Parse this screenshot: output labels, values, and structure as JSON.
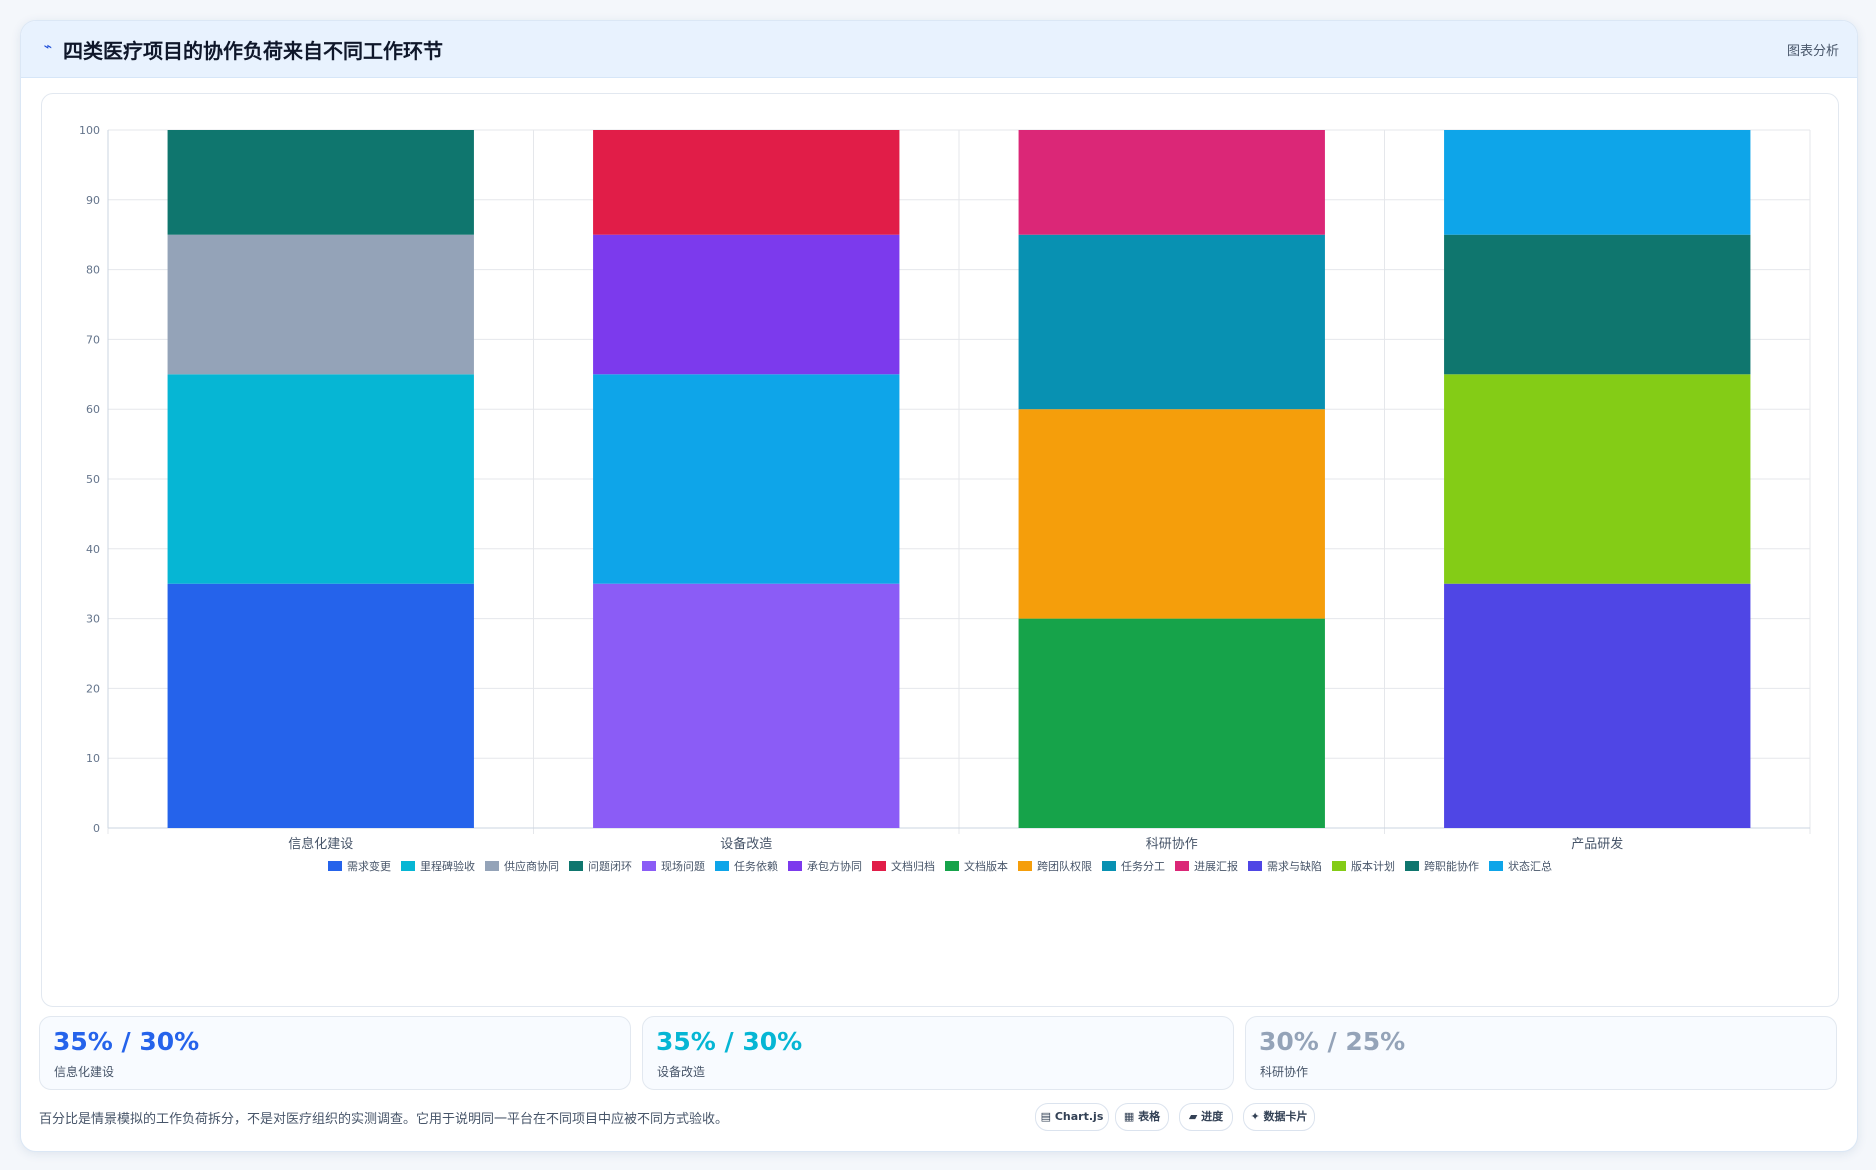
{
  "header": {
    "icon": "chart-line-icon",
    "title": "四类医疗项目的协作负荷来自不同工作环节",
    "tag": "图表分析"
  },
  "chart_data": {
    "type": "bar",
    "stacked": true,
    "categories": [
      "信息化建设",
      "设备改造",
      "科研协作",
      "产品研发"
    ],
    "ylim": [
      0,
      100
    ],
    "yticks": [
      0,
      10,
      20,
      30,
      40,
      50,
      60,
      70,
      80,
      90,
      100
    ],
    "grid": true,
    "legend_position": "bottom",
    "series": [
      {
        "name": "需求变更",
        "color": "#2563eb",
        "values": [
          35,
          0,
          0,
          0
        ]
      },
      {
        "name": "里程碑验收",
        "color": "#06b6d4",
        "values": [
          30,
          0,
          0,
          0
        ]
      },
      {
        "name": "供应商协同",
        "color": "#94a3b8",
        "values": [
          20,
          0,
          0,
          0
        ]
      },
      {
        "name": "问题闭环",
        "color": "#0f766e",
        "values": [
          15,
          0,
          0,
          0
        ]
      },
      {
        "name": "现场问题",
        "color": "#8b5cf6",
        "values": [
          0,
          35,
          0,
          0
        ]
      },
      {
        "name": "任务依赖",
        "color": "#0ea5e9",
        "values": [
          0,
          30,
          0,
          0
        ]
      },
      {
        "name": "承包方协同",
        "color": "#7c3aed",
        "values": [
          0,
          20,
          0,
          0
        ]
      },
      {
        "name": "文档归档",
        "color": "#e11d48",
        "values": [
          0,
          15,
          0,
          0
        ]
      },
      {
        "name": "文档版本",
        "color": "#16a34a",
        "values": [
          0,
          0,
          30,
          0
        ]
      },
      {
        "name": "跨团队权限",
        "color": "#f59e0b",
        "values": [
          0,
          0,
          30,
          0
        ]
      },
      {
        "name": "任务分工",
        "color": "#0891b2",
        "values": [
          0,
          0,
          25,
          0
        ]
      },
      {
        "name": "进展汇报",
        "color": "#db2777",
        "values": [
          0,
          0,
          15,
          0
        ]
      },
      {
        "name": "需求与缺陷",
        "color": "#4f46e5",
        "values": [
          0,
          0,
          0,
          35
        ]
      },
      {
        "name": "版本计划",
        "color": "#84cc16",
        "values": [
          0,
          0,
          0,
          30
        ]
      },
      {
        "name": "跨职能协作",
        "color": "#0f766e",
        "values": [
          0,
          0,
          0,
          20
        ]
      },
      {
        "name": "状态汇总",
        "color": "#0ea5e9",
        "values": [
          0,
          0,
          0,
          15
        ]
      }
    ]
  },
  "kpis": [
    {
      "value": "35% / 30%",
      "label": "信息化建设",
      "color": "#2563eb"
    },
    {
      "value": "35% / 30%",
      "label": "设备改造",
      "color": "#06b6d4"
    },
    {
      "value": "30% / 25%",
      "label": "科研协作",
      "color": "#94a3b8"
    }
  ],
  "note": "百分比是情景模拟的工作负荷拆分，不是对医疗组织的实测调查。它用于说明同一平台在不同项目中应被不同方式验收。",
  "pills": [
    {
      "icon": "chart-icon",
      "glyph": "▤",
      "label": "Chart.js"
    },
    {
      "icon": "table-icon",
      "glyph": "▦",
      "label": "表格"
    },
    {
      "icon": "progress-icon",
      "glyph": "▰",
      "label": "进度"
    },
    {
      "icon": "sparkle-icon",
      "glyph": "✦",
      "label": "数据卡片"
    }
  ]
}
